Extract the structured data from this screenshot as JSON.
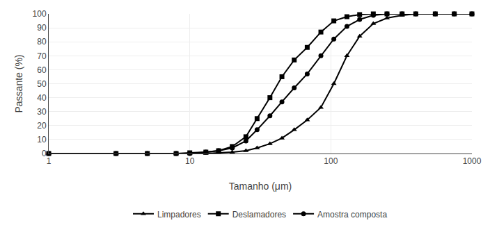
{
  "chart_data": {
    "type": "line",
    "xlabel": "Tamanho (μm)",
    "ylabel": "Passante (%)",
    "log": "x",
    "xlim": [
      1,
      1000
    ],
    "xticks": [
      1,
      10,
      100,
      1000
    ],
    "ylim": [
      0,
      100
    ],
    "yticks": [
      0,
      10,
      20,
      30,
      40,
      50,
      60,
      70,
      80,
      90,
      100
    ],
    "grid": true,
    "legend": "bottom",
    "x": [
      1,
      3,
      5,
      8,
      10,
      13,
      16,
      20,
      25,
      30,
      37,
      45,
      55,
      68,
      85,
      105,
      130,
      160,
      200,
      250,
      320,
      400,
      550,
      750,
      1000
    ],
    "series": [
      {
        "name": "Limpadores",
        "color": "#000000",
        "marker": "triangle",
        "values": [
          0,
          0,
          0,
          0,
          0,
          0,
          0.5,
          1,
          2,
          4,
          7,
          11,
          17,
          24,
          33,
          50,
          70,
          84,
          93,
          97,
          99,
          100,
          100,
          100,
          100
        ]
      },
      {
        "name": "Deslamadores",
        "color": "#000000",
        "marker": "square",
        "values": [
          0,
          0,
          0,
          0,
          0.5,
          1,
          2,
          5,
          12,
          25,
          40,
          55,
          67,
          76,
          87,
          95,
          98,
          99.5,
          100,
          100,
          100,
          100,
          100,
          100,
          100
        ]
      },
      {
        "name": "Amostra composta",
        "color": "#000000",
        "marker": "circle",
        "values": [
          0,
          0,
          0,
          0,
          0,
          1,
          2,
          4,
          9,
          17,
          27,
          37,
          47,
          57,
          70,
          82,
          91,
          96,
          99,
          100,
          100,
          100,
          100,
          100,
          100
        ]
      }
    ]
  }
}
